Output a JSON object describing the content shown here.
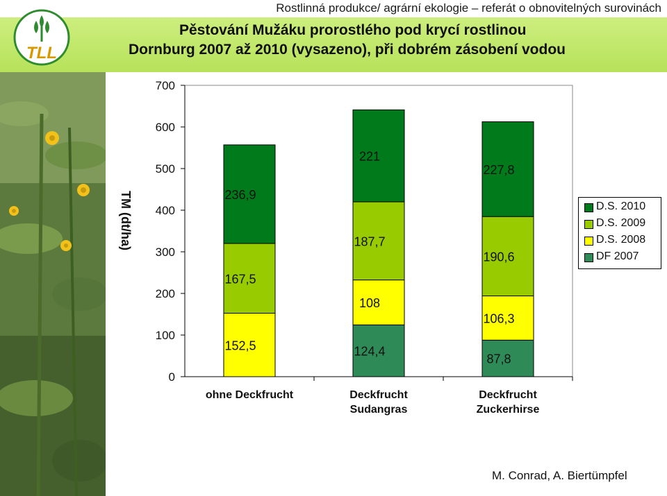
{
  "header": {
    "topline": "Rostlinná produkce/ agrární ekologie – referát o obnovitelných surovinách",
    "title_line1": "Pěstování Mužáku prorostlého pod krycí rostlinou",
    "title_line2": "Dornburg 2007 až 2010 (vysazeno), při dobrém zásobení vodou",
    "logo_text": "TLL"
  },
  "chart_data": {
    "type": "bar",
    "stacked": true,
    "ylabel": "TM (dt/ha)",
    "ylim": [
      0,
      700
    ],
    "yticks": [
      0,
      100,
      200,
      300,
      400,
      500,
      600,
      700
    ],
    "ytick_labels": [
      "0",
      "100",
      "200",
      "300",
      "400",
      "500",
      "600",
      "700"
    ],
    "grid": false,
    "legend_position": "right",
    "categories": [
      [
        "ohne Deckfrucht"
      ],
      [
        "Deckfrucht",
        "Sudangras"
      ],
      [
        "Deckfrucht",
        "Zuckerhirse"
      ]
    ],
    "series": [
      {
        "name": "DF 2007",
        "color": "#2e8b57",
        "values": [
          0,
          124.4,
          87.8
        ],
        "labels": [
          "",
          "124,4",
          "87,8"
        ]
      },
      {
        "name": "D.S. 2008",
        "color": "#ffff00",
        "values": [
          152.5,
          108,
          106.3
        ],
        "labels": [
          "152,5",
          "108",
          "106,3"
        ]
      },
      {
        "name": "D.S. 2009",
        "color": "#99cc00",
        "values": [
          167.5,
          187.7,
          190.6
        ],
        "labels": [
          "167,5",
          "187,7",
          "190,6"
        ]
      },
      {
        "name": "D.S. 2010",
        "color": "#007a1a",
        "values": [
          236.9,
          221,
          227.8
        ],
        "labels": [
          "236,9",
          "221",
          "227,8"
        ]
      }
    ],
    "legend_order": [
      "D.S. 2010",
      "D.S. 2009",
      "D.S. 2008",
      "DF 2007"
    ]
  },
  "footer": {
    "authors": "M. Conrad, A. Biertümpfel"
  }
}
